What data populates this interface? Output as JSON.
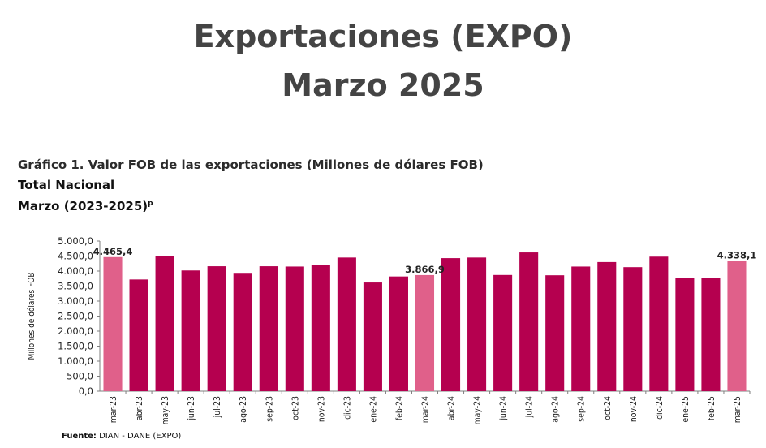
{
  "header": {
    "title_line1": "Exportaciones (EXPO)",
    "title_line2": "Marzo 2025"
  },
  "chart_header": {
    "line1": "Gráfico 1. Valor FOB de las exportaciones (Millones de dólares FOB)",
    "line2": "Total Nacional",
    "line3": "Marzo (2023-2025)",
    "line3_superscript": "p"
  },
  "colors": {
    "bar": "#b5004f",
    "highlight": "#e0608a",
    "axis": "#7f7f7f"
  },
  "chart_data": {
    "type": "bar",
    "ylabel": "Millones de dólares FOB",
    "ylim": [
      0,
      5000
    ],
    "yticks": [
      "0,0",
      "500,0",
      "1.000,0",
      "1.500,0",
      "2.000,0",
      "2.500,0",
      "3.000,0",
      "3.500,0",
      "4.000,0",
      "4.500,0",
      "5.000,0"
    ],
    "categories": [
      "mar-23",
      "abr-23",
      "may-23",
      "jun-23",
      "jul-23",
      "ago-23",
      "sep-23",
      "oct-23",
      "nov-23",
      "dic-23",
      "ene-24",
      "feb-24",
      "mar-24",
      "abr-24",
      "may-24",
      "jun-24",
      "jul-24",
      "ago-24",
      "sep-24",
      "oct-24",
      "nov-24",
      "dic-24",
      "ene-25",
      "feb-25",
      "mar-25"
    ],
    "values": [
      4465.4,
      3720,
      4500,
      4020,
      4160,
      3940,
      4160,
      4150,
      4190,
      4450,
      3620,
      3820,
      3866.9,
      4430,
      4450,
      3870,
      4620,
      3860,
      4150,
      4300,
      4130,
      4480,
      3780,
      3780,
      4338.1
    ],
    "highlighted": [
      0,
      12,
      24
    ],
    "data_labels": [
      {
        "index": 0,
        "text": "4.465,4"
      },
      {
        "index": 12,
        "text": "3.866,9"
      },
      {
        "index": 24,
        "text": "4.338,1"
      }
    ],
    "grid": false
  },
  "footer": {
    "source_label": "Fuente:",
    "source_text": "DIAN - DANE (EXPO)"
  }
}
